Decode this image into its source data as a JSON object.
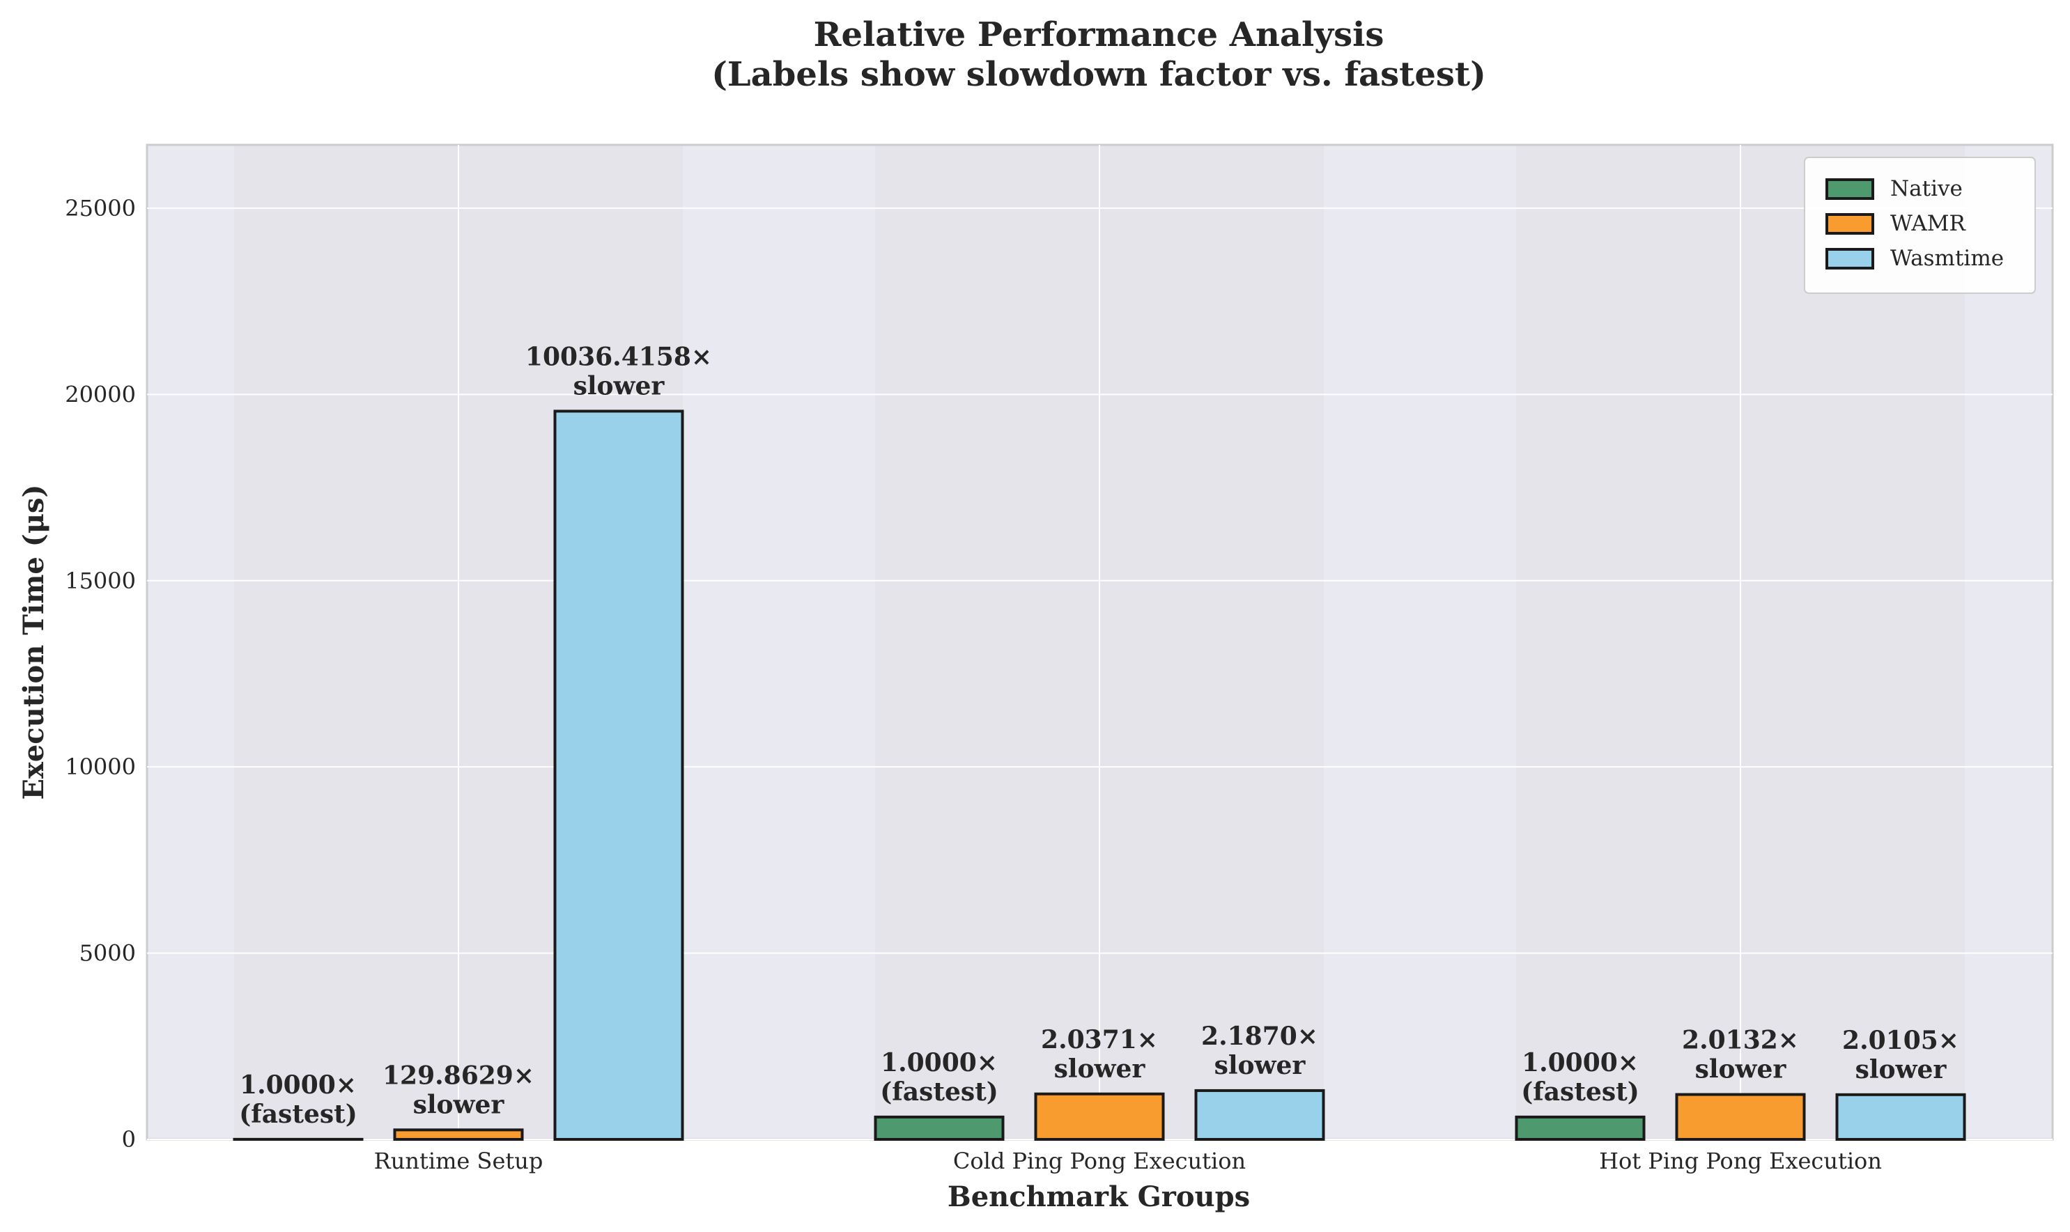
{
  "chart_data": {
    "type": "bar",
    "title": "Relative Performance Analysis",
    "subtitle": "(Labels show slowdown factor vs. fastest)",
    "xlabel": "Benchmark Groups",
    "ylabel": "Execution Time (μs)",
    "ylim": [
      0,
      26700
    ],
    "yticks": [
      0,
      5000,
      10000,
      15000,
      20000,
      25000
    ],
    "grid": true,
    "legend_position": "top-right",
    "categories": [
      "Runtime Setup",
      "Cold Ping Pong Execution",
      "Hot Ping Pong Execution"
    ],
    "series": [
      {
        "name": "Native",
        "color": "#4e9a6e",
        "values": [
          2,
          600,
          600
        ],
        "labels": [
          [
            "1.0000×",
            "(fastest)"
          ],
          [
            "1.0000×",
            "(fastest)"
          ],
          [
            "1.0000×",
            "(fastest)"
          ]
        ]
      },
      {
        "name": "WAMR",
        "color": "#f89c30",
        "values": [
          255,
          1220,
          1205
        ],
        "labels": [
          [
            "129.8629×",
            "slower"
          ],
          [
            "2.0371×",
            "slower"
          ],
          [
            "2.0132×",
            "slower"
          ]
        ]
      },
      {
        "name": "Wasmtime",
        "color": "#9ad1ea",
        "values": [
          19550,
          1310,
          1200
        ],
        "labels": [
          [
            "10036.4158×",
            "slower"
          ],
          [
            "2.1870×",
            "slower"
          ],
          [
            "2.0105×",
            "slower"
          ]
        ]
      }
    ]
  }
}
